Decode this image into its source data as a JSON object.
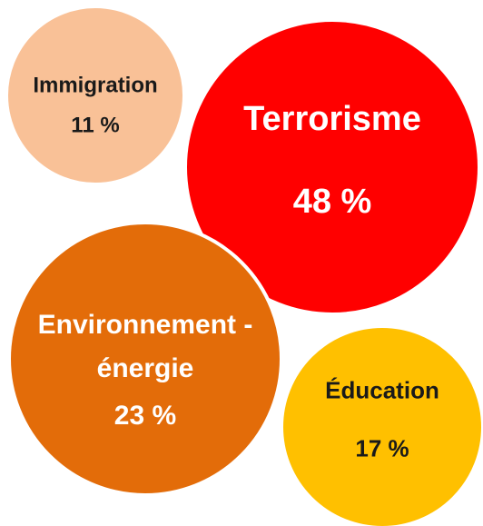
{
  "chart_data": {
    "type": "bubble",
    "categories": [
      "Immigration",
      "Terrorisme",
      "Environnement - énergie",
      "Éducation"
    ],
    "values": [
      11,
      48,
      23,
      17
    ],
    "value_labels": [
      "11 %",
      "48 %",
      "23 %",
      "17 %"
    ],
    "colors": [
      "#f9c197",
      "#ff0000",
      "#e36c09",
      "#ffc000"
    ]
  }
}
